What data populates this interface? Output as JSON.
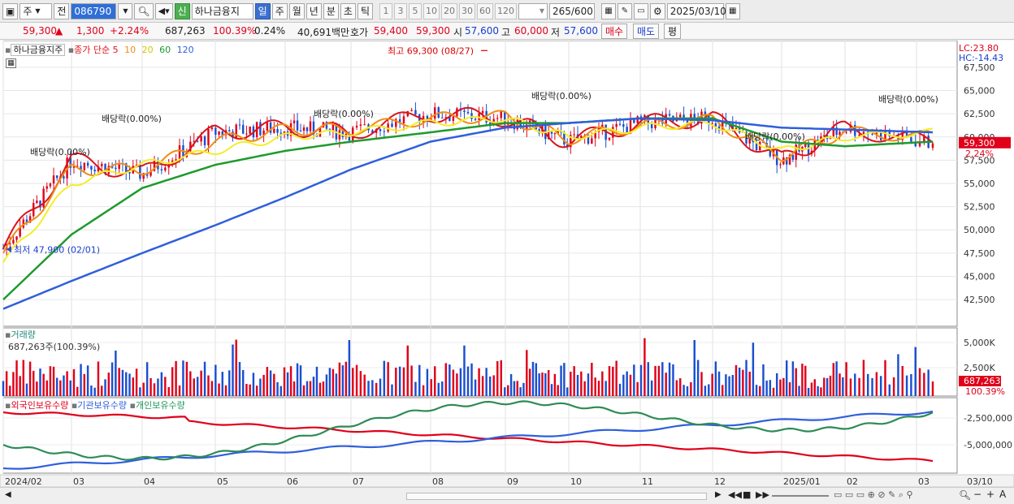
{
  "toolbar": {
    "period_select": "주",
    "prev_label": "전",
    "code": "086790",
    "new_badge": "신",
    "stock_name": "하나금융지",
    "intervals": [
      "일",
      "주",
      "월",
      "년",
      "분",
      "초",
      "틱"
    ],
    "active_interval": "일",
    "minute_values": [
      "1",
      "3",
      "5",
      "10",
      "20",
      "30",
      "60",
      "120"
    ],
    "count_value": "265",
    "count_total": "/600",
    "date_value": "2025/03/10"
  },
  "quote": {
    "price": "59,300",
    "change_arrow": "▲",
    "change": "1,300",
    "change_pct": "+2.24%",
    "volume": "687,263",
    "volume_ratio": "100.39%",
    "turnover": "0.24%",
    "amount": "40,691백만",
    "ask_label": "호가",
    "ask1": "59,400",
    "ask2": "59,300",
    "open_label": "시",
    "open": "57,600",
    "high_label": "고",
    "high": "60,000",
    "low_label": "저",
    "low": "57,600",
    "buy_label": "매수",
    "sell_label": "매도",
    "eval_label": "평"
  },
  "price_panel": {
    "stock_label": "하나금융지주",
    "ma_label": "종가 단순",
    "ma_periods": [
      "5",
      "10",
      "20",
      "60",
      "120"
    ],
    "lc_label": "LC:23.80",
    "hc_label": "HC:-14.43",
    "y_ticks": [
      "67,500",
      "65,000",
      "62,500",
      "60,000",
      "57,500",
      "55,000",
      "52,500",
      "50,000",
      "47,500",
      "45,000",
      "42,500"
    ],
    "current_price_tag": "59,300",
    "current_pct_tag": "2.24%",
    "high_annotation": "최고 69,300 (08/27)",
    "low_annotation": "최저 47,900 (02/01)",
    "dividend_annotations": [
      "배당락(0.00%)",
      "배당락(0.00%)",
      "배당락(0.00%)",
      "배당락(0.00%)",
      "배당락(0.00%)",
      "배당락(0.00%)"
    ]
  },
  "volume_panel": {
    "title": "거래량",
    "last_value": "687,263주(100.39%)",
    "y_ticks": [
      "5,000K",
      "2,500K"
    ],
    "tag_value": "687,263",
    "tag_pct": "100.39%"
  },
  "holdings_panel": {
    "foreign_label": "외국인보유수량",
    "inst_label": "기관보유수량",
    "retail_label": "개인보유수량",
    "y_ticks": [
      "-2,500,000",
      "-5,000,000"
    ]
  },
  "x_axis": {
    "labels": [
      "2024/02",
      "03",
      "04",
      "05",
      "06",
      "07",
      "08",
      "09",
      "10",
      "11",
      "12",
      "2025/01",
      "02",
      "03",
      "03/10"
    ]
  },
  "colors": {
    "up": "#e0001a",
    "down": "#1a4fd0",
    "ma5": "#d8141c",
    "ma10": "#f08c14",
    "ma20": "#f2ee2a",
    "ma60": "#1e9a2e",
    "ma120": "#2f5fdc"
  },
  "chart_data": {
    "type": "candlestick",
    "ylim": [
      40500,
      69500
    ],
    "x": [
      "2024/02",
      "03",
      "04",
      "05",
      "06",
      "07",
      "08",
      "09",
      "10",
      "11",
      "12",
      "2025/01",
      "02",
      "03"
    ],
    "series": [
      {
        "name": "5",
        "values": [
          48000,
          57500,
          56000,
          60500,
          61000,
          60500,
          62500,
          62000,
          59500,
          61500,
          62000,
          57500,
          61000,
          59300
        ]
      },
      {
        "name": "10",
        "values": [
          47500,
          56500,
          56500,
          59500,
          60800,
          60800,
          62000,
          62200,
          59800,
          61200,
          61800,
          58000,
          60500,
          60000
        ]
      },
      {
        "name": "20",
        "values": [
          46500,
          55000,
          57000,
          58500,
          60000,
          60500,
          61500,
          62000,
          60000,
          61000,
          61500,
          58500,
          60000,
          60500
        ]
      },
      {
        "name": "60",
        "values": [
          42500,
          49500,
          54500,
          57000,
          58500,
          59500,
          60500,
          61500,
          61500,
          62000,
          62000,
          59500,
          59000,
          59500
        ]
      },
      {
        "name": "120",
        "values": [
          41500,
          44500,
          47500,
          50500,
          53500,
          56500,
          59500,
          61000,
          61500,
          62000,
          61800,
          61000,
          60800,
          60500
        ]
      }
    ],
    "last_close": 59300,
    "high": {
      "value": 69300,
      "date": "08/27"
    },
    "low": {
      "value": 47900,
      "date": "02/01"
    }
  }
}
